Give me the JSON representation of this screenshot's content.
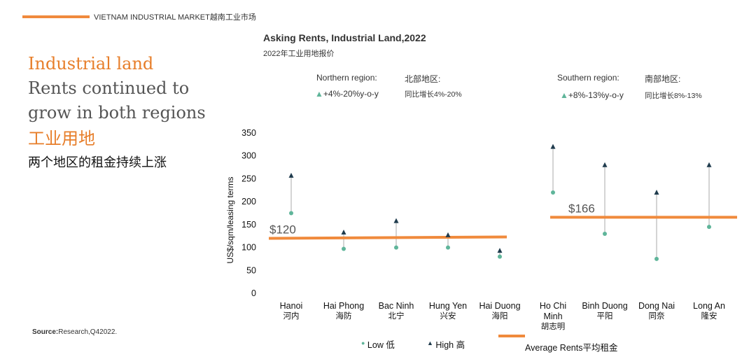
{
  "header": {
    "label": "VIETNAM INDUSTRIAL MARKET越南工业市场"
  },
  "headline": {
    "accent": "Industrial land",
    "line2": "Rents continued to",
    "line3": "grow in both regions",
    "zh_accent": "工业用地",
    "zh_line": "两个地区的租金持续上涨"
  },
  "source": {
    "bold": "Source:",
    "text": "Research,Q42022."
  },
  "regions": {
    "north": {
      "label": "Northern region:",
      "label_zh": "北部地区:",
      "change": "+4%-20%y-o-y",
      "change_zh": "同比增长4%-20%"
    },
    "south": {
      "label": "Southern region:",
      "label_zh": "南部地区:",
      "change": "+8%-13%y-o-y",
      "change_zh": "同比增长8%-13%"
    }
  },
  "chart_data": {
    "type": "scatter",
    "title": "Asking Rents, Industrial Land,2022",
    "subtitle": "2022年工业用地报价",
    "ylabel": "US$/sqm/leasing terms",
    "ylim": [
      0,
      350
    ],
    "yticks": [
      0,
      50,
      100,
      150,
      200,
      250,
      300,
      350
    ],
    "categories": [
      {
        "en": "Hanoi",
        "zh": "河内"
      },
      {
        "en": "Hai Phong",
        "zh": "海防"
      },
      {
        "en": "Bac Ninh",
        "zh": "北宁"
      },
      {
        "en": "Hung Yen",
        "zh": "兴安"
      },
      {
        "en": "Hai Duong",
        "zh": "海阳"
      },
      {
        "en": "Ho Chi Minh",
        "zh": "胡志明"
      },
      {
        "en": "Binh Duong",
        "zh": "平阳"
      },
      {
        "en": "Dong Nai",
        "zh": "同奈"
      },
      {
        "en": "Long An",
        "zh": "隆安"
      }
    ],
    "series": [
      {
        "name": "Low 低",
        "color": "#5fb59a",
        "values": [
          175,
          97,
          100,
          100,
          80,
          220,
          130,
          75,
          145
        ]
      },
      {
        "name": "High 高",
        "color": "#1f3b4d",
        "values": [
          257,
          133,
          158,
          127,
          93,
          320,
          280,
          220,
          280
        ]
      }
    ],
    "averages": [
      {
        "name": "Average Rents平均租金",
        "region": "north",
        "value": 120,
        "label": "$120",
        "color": "#f08a3c"
      },
      {
        "region": "south",
        "value": 166,
        "label": "$166",
        "color": "#f08a3c"
      }
    ]
  }
}
